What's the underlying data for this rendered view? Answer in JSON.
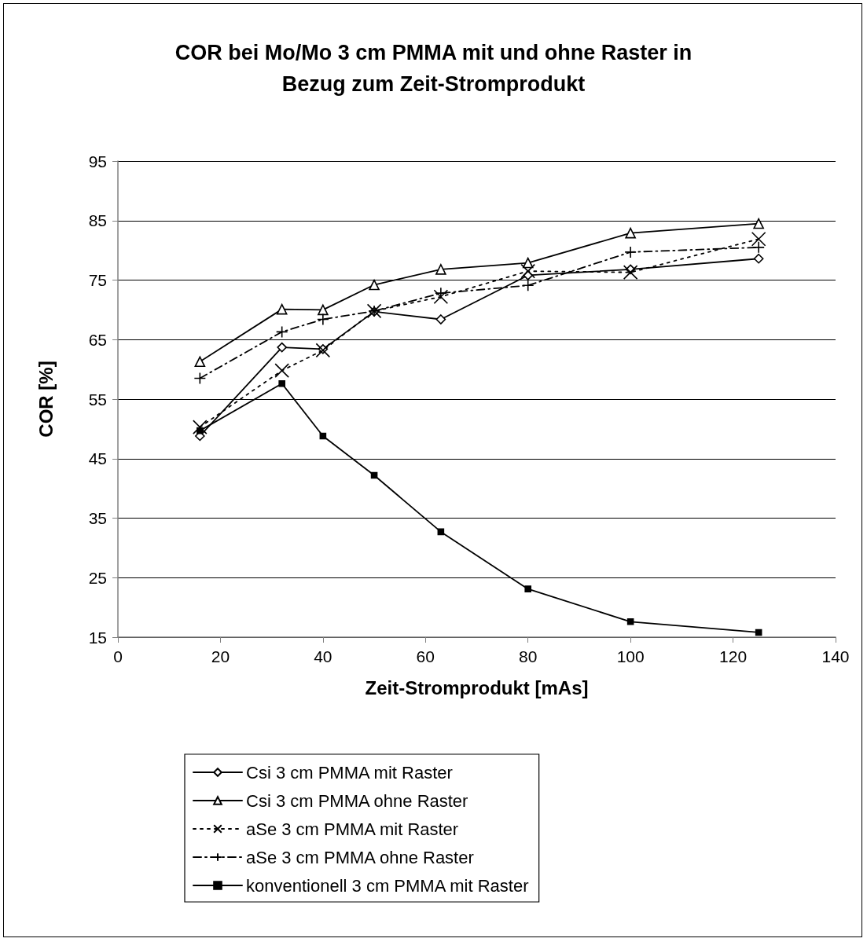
{
  "chart_data": {
    "type": "line",
    "title": "COR bei Mo/Mo 3 cm PMMA mit und ohne Raster in\nBezug zum Zeit-Stromprodukt",
    "xlabel": "Zeit-Stromprodukt [mAs]",
    "ylabel": "COR [%]",
    "x": [
      16,
      32,
      40,
      50,
      63,
      80,
      100,
      125
    ],
    "series": [
      {
        "name": "Csi 3 cm PMMA mit Raster",
        "color": "#000000",
        "marker": "diamond",
        "line_style": "solid",
        "values": [
          48.8,
          63.7,
          63.4,
          69.7,
          68.4,
          75.8,
          76.8,
          78.6
        ]
      },
      {
        "name": "Csi 3 cm PMMA ohne Raster",
        "color": "#000000",
        "marker": "triangle",
        "line_style": "solid",
        "values": [
          61.3,
          70.1,
          70.0,
          74.2,
          76.8,
          77.9,
          82.9,
          84.5
        ]
      },
      {
        "name": "aSe 3 cm PMMA mit Raster",
        "color": "#000000",
        "marker": "cross",
        "line_style": "dotted",
        "values": [
          50.3,
          59.8,
          63.2,
          69.8,
          72.2,
          76.5,
          76.3,
          81.9
        ]
      },
      {
        "name": "aSe 3 cm PMMA ohne Raster",
        "color": "#000000",
        "marker": "plus",
        "line_style": "dashed",
        "values": [
          58.5,
          66.3,
          68.4,
          69.8,
          72.8,
          74.1,
          79.7,
          80.5
        ]
      },
      {
        "name": "konventionell 3 cm PMMA mit Raster",
        "color": "#000000",
        "marker": "square",
        "line_style": "solid",
        "values": [
          49.7,
          57.6,
          48.8,
          42.2,
          32.7,
          23.1,
          17.6,
          15.8
        ]
      }
    ],
    "xlim": [
      0,
      140
    ],
    "xticks": [
      0,
      20,
      40,
      60,
      80,
      100,
      120,
      140
    ],
    "ylim": [
      15,
      95
    ],
    "yticks": [
      15,
      25,
      35,
      45,
      55,
      65,
      75,
      85,
      95
    ],
    "grid": "y",
    "legend": "bottom"
  }
}
